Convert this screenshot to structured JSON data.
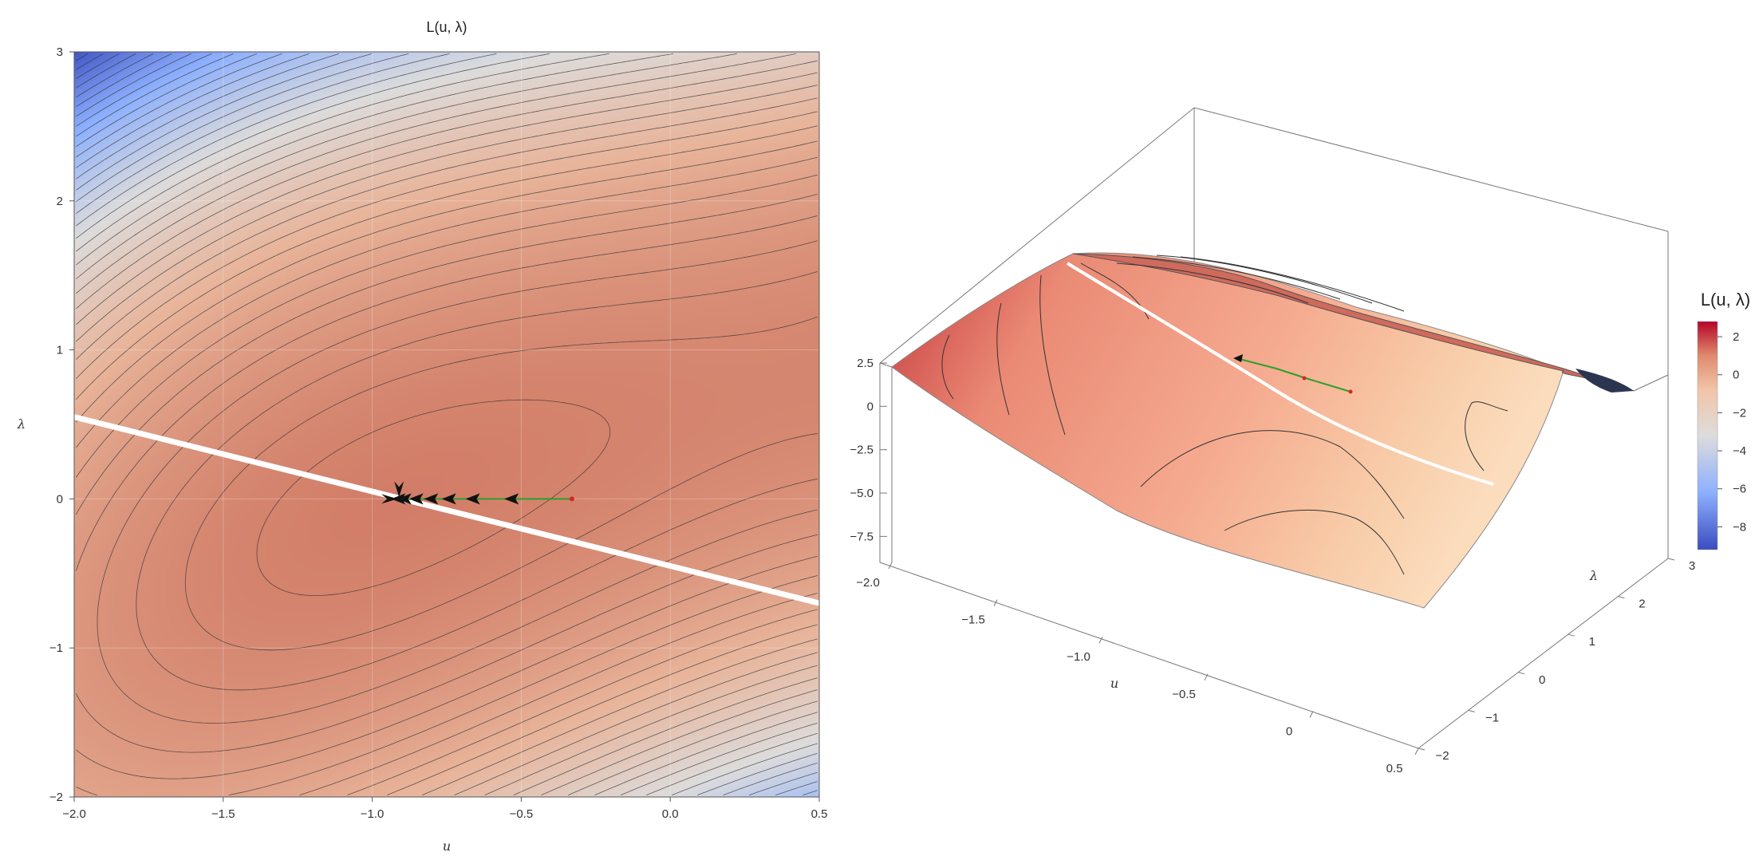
{
  "chart_data": [
    {
      "type": "contour",
      "title": "L(u, λ)",
      "xlabel": "u",
      "ylabel": "λ",
      "xlim": [
        -2.0,
        0.5
      ],
      "ylim": [
        -2.0,
        3.0
      ],
      "x_ticks": [
        "−2.0",
        "−1.5",
        "−1.0",
        "−0.5",
        "0.0",
        "0.5"
      ],
      "x_tick_values": [
        -2.0,
        -1.5,
        -1.0,
        -0.5,
        0.0,
        0.5
      ],
      "y_ticks": [
        "−2",
        "−1",
        "0",
        "1",
        "2",
        "3"
      ],
      "y_tick_values": [
        -2,
        -1,
        0,
        1,
        2,
        3
      ],
      "colormap": [
        "#3b4cc0",
        "#8db0fe",
        "#dddcdc",
        "#e8b49a",
        "#d3816b",
        "#b40426"
      ],
      "constraint_line": {
        "points": [
          [
            -2.0,
            0.55
          ],
          [
            0.5,
            -0.7
          ]
        ],
        "color": "#ffffff"
      },
      "optimizer_path": {
        "color": "#2ca02c",
        "marker_color": "#d62728",
        "arrow_color": "#111111",
        "points": [
          [
            -0.33,
            0.0
          ],
          [
            -0.53,
            0.0
          ],
          [
            -0.66,
            0.0
          ],
          [
            -0.74,
            0.0
          ],
          [
            -0.8,
            0.0
          ],
          [
            -0.85,
            0.0
          ],
          [
            -0.89,
            0.0
          ],
          [
            -0.91,
            0.0
          ]
        ]
      },
      "stationary_point": [
        -0.91,
        0.0
      ]
    },
    {
      "type": "surface",
      "xlabel": "u",
      "ylabel": "λ",
      "x_ticks": [
        "−2.0",
        "−1.5",
        "−1.0",
        "−0.5",
        "0",
        "0.5"
      ],
      "x_tick_values": [
        -2.0,
        -1.5,
        -1.0,
        -0.5,
        0.0,
        0.5
      ],
      "y_ticks": [
        "−2",
        "−1",
        "0",
        "1",
        "2",
        "3"
      ],
      "y_tick_values": [
        -2,
        -1,
        0,
        1,
        2,
        3
      ],
      "z_ticks": [
        "2.5",
        "0",
        "−2.5",
        "−5.0",
        "−7.5"
      ],
      "z_tick_values": [
        2.5,
        0,
        -2.5,
        -5.0,
        -7.5
      ],
      "legend": {
        "title": "L(u, λ)",
        "ticks": [
          "2",
          "0",
          "−2",
          "−4",
          "−6",
          "−8"
        ],
        "tick_values": [
          2,
          0,
          -2,
          -4,
          -6,
          -8
        ],
        "range": [
          -9.2,
          2.8
        ]
      }
    }
  ]
}
